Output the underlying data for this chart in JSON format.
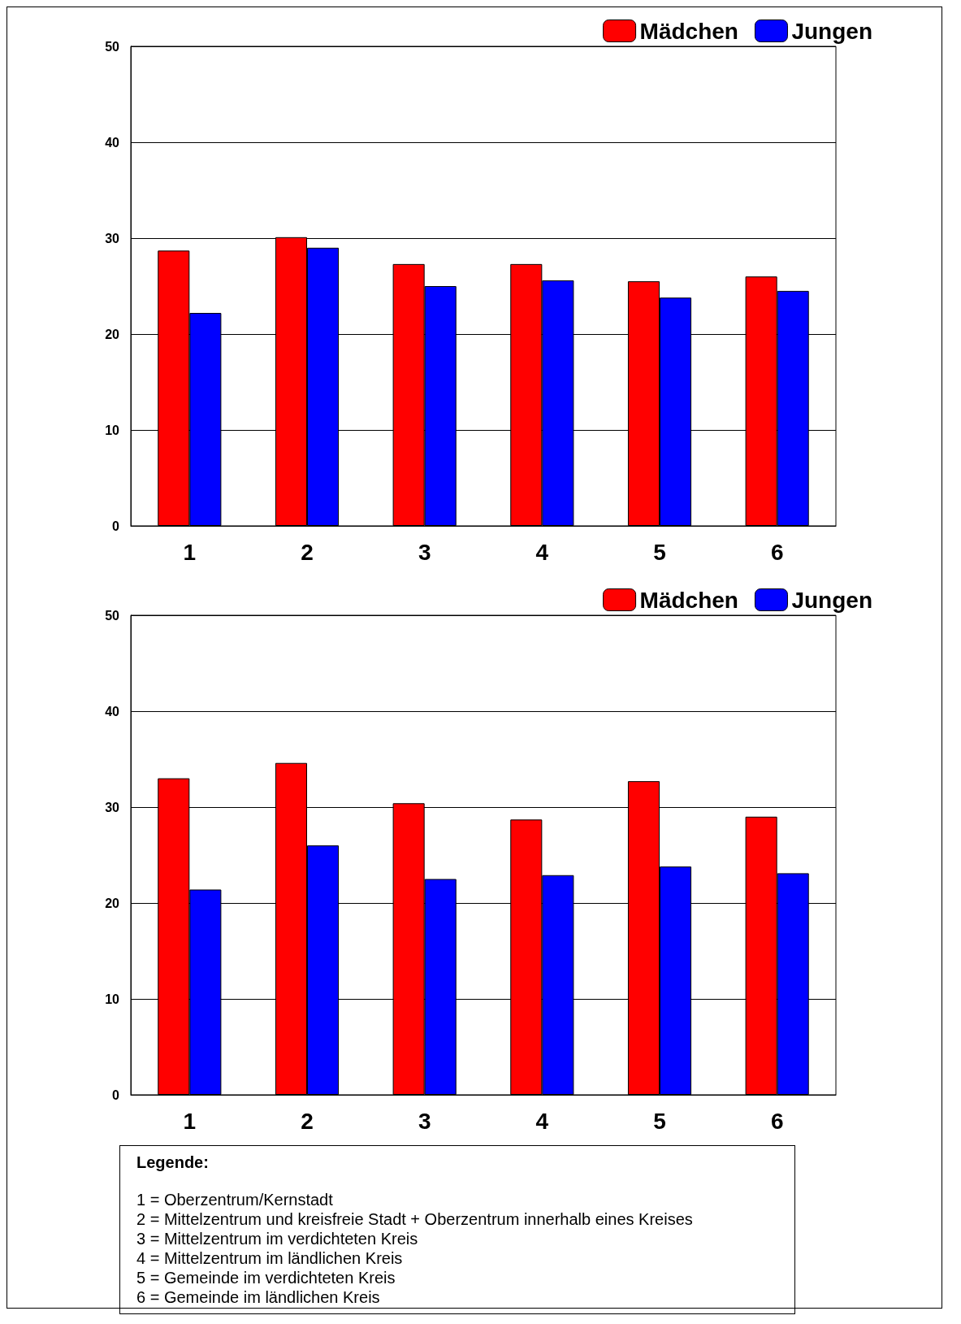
{
  "chart_data": [
    {
      "type": "bar",
      "categories": [
        "1",
        "2",
        "3",
        "4",
        "5",
        "6"
      ],
      "series": [
        {
          "name": "Mädchen",
          "color": "#ff0000",
          "values": [
            28.7,
            30.1,
            27.3,
            27.3,
            25.5,
            26.0
          ]
        },
        {
          "name": "Jungen",
          "color": "#0000ff",
          "values": [
            22.2,
            29.0,
            25.0,
            25.6,
            23.8,
            24.5
          ]
        }
      ],
      "ylim": [
        0,
        50
      ],
      "yticks": [
        0,
        10,
        20,
        30,
        40,
        50
      ],
      "grid": "y",
      "legend": "top right"
    },
    {
      "type": "bar",
      "categories": [
        "1",
        "2",
        "3",
        "4",
        "5",
        "6"
      ],
      "series": [
        {
          "name": "Mädchen",
          "color": "#ff0000",
          "values": [
            33.0,
            34.6,
            30.4,
            28.7,
            32.7,
            29.0
          ]
        },
        {
          "name": "Jungen",
          "color": "#0000ff",
          "values": [
            21.4,
            26.0,
            22.5,
            22.9,
            23.8,
            23.1
          ]
        }
      ],
      "ylim": [
        0,
        50
      ],
      "yticks": [
        0,
        10,
        20,
        30,
        40,
        50
      ],
      "grid": "y",
      "legend": "top right",
      "annotations": [
        "Legende:",
        "1 = Oberzentrum/Kernstadt",
        "2 = Mittelzentrum und kreisfreie Stadt + Oberzentrum innerhalb eines Kreises",
        "3 = Mittelzentrum im verdichteten Kreis",
        "4 = Mittelzentrum im ländlichen Kreis",
        "5 = Gemeinde im verdichteten Kreis",
        "6 = Gemeinde im ländlichen Kreis"
      ]
    }
  ]
}
